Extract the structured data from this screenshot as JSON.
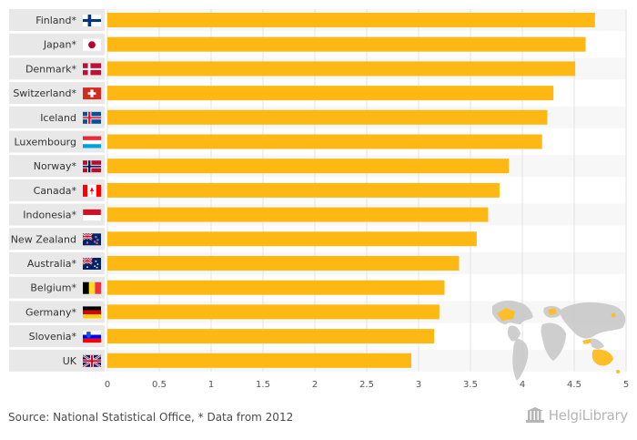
{
  "chart_data": {
    "type": "bar",
    "orientation": "horizontal",
    "categories": [
      "Finland*",
      "Japan*",
      "Denmark*",
      "Switzerland*",
      "Iceland",
      "Luxembourg",
      "Norway*",
      "Canada*",
      "Indonesia*",
      "New Zealand",
      "Australia*",
      "Belgium*",
      "Germany*",
      "Slovenia*",
      "UK"
    ],
    "flags": [
      "finland",
      "japan",
      "denmark",
      "switzerland",
      "iceland",
      "luxembourg",
      "norway",
      "canada",
      "indonesia",
      "new-zealand",
      "australia",
      "belgium",
      "germany",
      "slovenia",
      "uk"
    ],
    "values": [
      4.7,
      4.61,
      4.51,
      4.3,
      4.24,
      4.19,
      3.87,
      3.78,
      3.67,
      3.56,
      3.39,
      3.25,
      3.2,
      3.15,
      2.93
    ],
    "xlim": [
      0,
      5
    ],
    "xticks": [
      "0",
      "0.5",
      "1",
      "1.5",
      "2",
      "2.5",
      "3",
      "3.5",
      "4",
      "4.5",
      "5"
    ],
    "bar_color": "#FDB813",
    "label_bg_color": "#E8E8E8",
    "band_color": "#F7F7F7",
    "grid": true
  },
  "footer": {
    "source": "Source: National Statistical Office, * Data from 2012",
    "brand": "HelgiLibrary"
  },
  "colors": {
    "map_land": "#C9C9C9",
    "map_highlight": "#FDB813",
    "brand": "#B5B5B5"
  }
}
